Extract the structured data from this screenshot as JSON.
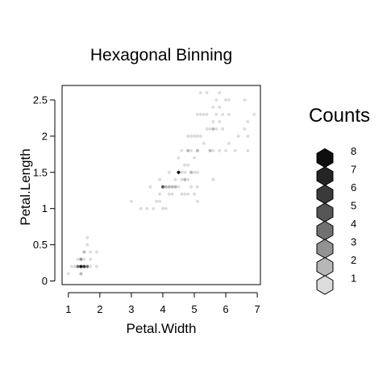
{
  "chart_data": {
    "type": "hexbin",
    "title": "Hexagonal Binning",
    "xlabel": "Petal.Width",
    "ylabel": "Petal.Length",
    "xlim": [
      0.8,
      7.1
    ],
    "ylim": [
      -0.05,
      2.7
    ],
    "x_ticks": [
      1,
      2,
      3,
      4,
      5,
      6,
      7
    ],
    "x_tick_labels": [
      "1",
      "2",
      "3",
      "4",
      "5",
      "6",
      "7"
    ],
    "y_ticks": [
      0,
      0.5,
      1,
      1.5,
      2,
      2.5
    ],
    "y_tick_labels": [
      "0",
      "0.5",
      "1",
      "1.5",
      "2",
      "2.5"
    ],
    "legend": {
      "title": "Counts",
      "position": "right",
      "levels": [
        {
          "label": "8",
          "color": "#0e0e0e"
        },
        {
          "label": "7",
          "color": "#242424"
        },
        {
          "label": "6",
          "color": "#3a3a3a"
        },
        {
          "label": "5",
          "color": "#555555"
        },
        {
          "label": "4",
          "color": "#717171"
        },
        {
          "label": "3",
          "color": "#929292"
        },
        {
          "label": "2",
          "color": "#b7b7b7"
        },
        {
          "label": "1",
          "color": "#dcdcdc"
        }
      ]
    },
    "cells": [
      {
        "x": 1.0,
        "y": 0.1,
        "count": 1
      },
      {
        "x": 1.4,
        "y": 0.1,
        "count": 2
      },
      {
        "x": 1.1,
        "y": 0.2,
        "count": 1
      },
      {
        "x": 1.3,
        "y": 0.2,
        "count": 4
      },
      {
        "x": 1.4,
        "y": 0.2,
        "count": 8
      },
      {
        "x": 1.5,
        "y": 0.2,
        "count": 6
      },
      {
        "x": 1.6,
        "y": 0.2,
        "count": 4
      },
      {
        "x": 1.2,
        "y": 0.2,
        "count": 1
      },
      {
        "x": 1.7,
        "y": 0.2,
        "count": 1
      },
      {
        "x": 1.9,
        "y": 0.2,
        "count": 1
      },
      {
        "x": 1.3,
        "y": 0.3,
        "count": 1
      },
      {
        "x": 1.4,
        "y": 0.3,
        "count": 3
      },
      {
        "x": 1.5,
        "y": 0.3,
        "count": 1
      },
      {
        "x": 1.7,
        "y": 0.3,
        "count": 1
      },
      {
        "x": 1.5,
        "y": 0.4,
        "count": 2
      },
      {
        "x": 1.7,
        "y": 0.4,
        "count": 1
      },
      {
        "x": 1.9,
        "y": 0.4,
        "count": 1
      },
      {
        "x": 1.6,
        "y": 0.6,
        "count": 1
      },
      {
        "x": 1.6,
        "y": 0.5,
        "count": 1
      },
      {
        "x": 3.0,
        "y": 1.1,
        "count": 1
      },
      {
        "x": 3.3,
        "y": 1.0,
        "count": 1
      },
      {
        "x": 3.5,
        "y": 1.0,
        "count": 1
      },
      {
        "x": 3.6,
        "y": 1.3,
        "count": 1
      },
      {
        "x": 3.7,
        "y": 1.0,
        "count": 1
      },
      {
        "x": 3.8,
        "y": 1.1,
        "count": 1
      },
      {
        "x": 3.9,
        "y": 1.1,
        "count": 1
      },
      {
        "x": 3.9,
        "y": 1.4,
        "count": 1
      },
      {
        "x": 3.9,
        "y": 1.2,
        "count": 1
      },
      {
        "x": 4.0,
        "y": 1.0,
        "count": 1
      },
      {
        "x": 4.0,
        "y": 1.3,
        "count": 5
      },
      {
        "x": 4.1,
        "y": 1.0,
        "count": 1
      },
      {
        "x": 4.1,
        "y": 1.3,
        "count": 2
      },
      {
        "x": 4.2,
        "y": 1.3,
        "count": 2
      },
      {
        "x": 4.3,
        "y": 1.3,
        "count": 2
      },
      {
        "x": 4.4,
        "y": 1.3,
        "count": 2
      },
      {
        "x": 4.4,
        "y": 1.4,
        "count": 1
      },
      {
        "x": 4.5,
        "y": 1.3,
        "count": 1
      },
      {
        "x": 4.5,
        "y": 1.5,
        "count": 8
      },
      {
        "x": 4.6,
        "y": 1.4,
        "count": 1
      },
      {
        "x": 4.6,
        "y": 1.5,
        "count": 1
      },
      {
        "x": 4.7,
        "y": 1.4,
        "count": 2
      },
      {
        "x": 4.7,
        "y": 1.5,
        "count": 1
      },
      {
        "x": 4.5,
        "y": 1.7,
        "count": 1
      },
      {
        "x": 4.8,
        "y": 1.8,
        "count": 2
      },
      {
        "x": 4.9,
        "y": 1.5,
        "count": 2
      },
      {
        "x": 4.8,
        "y": 1.4,
        "count": 1
      },
      {
        "x": 4.9,
        "y": 1.8,
        "count": 1
      },
      {
        "x": 5.0,
        "y": 1.7,
        "count": 1
      },
      {
        "x": 5.0,
        "y": 2.0,
        "count": 1
      },
      {
        "x": 4.9,
        "y": 2.0,
        "count": 1
      },
      {
        "x": 4.8,
        "y": 2.0,
        "count": 1
      },
      {
        "x": 4.6,
        "y": 1.8,
        "count": 1
      },
      {
        "x": 4.7,
        "y": 1.6,
        "count": 1
      },
      {
        "x": 5.1,
        "y": 1.8,
        "count": 2
      },
      {
        "x": 5.1,
        "y": 1.5,
        "count": 1
      },
      {
        "x": 5.1,
        "y": 2.0,
        "count": 1
      },
      {
        "x": 5.0,
        "y": 1.5,
        "count": 1
      },
      {
        "x": 4.8,
        "y": 1.6,
        "count": 1
      },
      {
        "x": 4.8,
        "y": 1.2,
        "count": 1
      },
      {
        "x": 4.9,
        "y": 1.3,
        "count": 1
      },
      {
        "x": 5.0,
        "y": 1.2,
        "count": 1
      },
      {
        "x": 5.1,
        "y": 1.1,
        "count": 1
      },
      {
        "x": 5.1,
        "y": 1.3,
        "count": 1
      },
      {
        "x": 4.2,
        "y": 1.5,
        "count": 1
      },
      {
        "x": 4.2,
        "y": 1.2,
        "count": 1
      },
      {
        "x": 4.3,
        "y": 1.2,
        "count": 1
      },
      {
        "x": 4.6,
        "y": 1.2,
        "count": 1
      },
      {
        "x": 4.7,
        "y": 1.2,
        "count": 1
      },
      {
        "x": 5.1,
        "y": 2.3,
        "count": 1
      },
      {
        "x": 5.2,
        "y": 2.3,
        "count": 1
      },
      {
        "x": 5.3,
        "y": 2.3,
        "count": 1
      },
      {
        "x": 5.2,
        "y": 2.0,
        "count": 1
      },
      {
        "x": 5.3,
        "y": 1.9,
        "count": 1
      },
      {
        "x": 5.4,
        "y": 2.1,
        "count": 1
      },
      {
        "x": 5.4,
        "y": 2.3,
        "count": 1
      },
      {
        "x": 5.5,
        "y": 1.8,
        "count": 2
      },
      {
        "x": 5.5,
        "y": 2.1,
        "count": 1
      },
      {
        "x": 5.6,
        "y": 1.8,
        "count": 1
      },
      {
        "x": 5.6,
        "y": 2.4,
        "count": 1
      },
      {
        "x": 5.6,
        "y": 2.2,
        "count": 1
      },
      {
        "x": 5.6,
        "y": 1.4,
        "count": 1
      },
      {
        "x": 5.6,
        "y": 2.1,
        "count": 2
      },
      {
        "x": 5.7,
        "y": 2.1,
        "count": 1
      },
      {
        "x": 5.7,
        "y": 2.5,
        "count": 1
      },
      {
        "x": 5.7,
        "y": 2.3,
        "count": 1
      },
      {
        "x": 5.8,
        "y": 1.8,
        "count": 1
      },
      {
        "x": 5.8,
        "y": 2.2,
        "count": 1
      },
      {
        "x": 5.8,
        "y": 2.4,
        "count": 1
      },
      {
        "x": 5.9,
        "y": 2.3,
        "count": 1
      },
      {
        "x": 5.9,
        "y": 2.1,
        "count": 1
      },
      {
        "x": 6.0,
        "y": 1.8,
        "count": 1
      },
      {
        "x": 6.0,
        "y": 2.5,
        "count": 1
      },
      {
        "x": 6.1,
        "y": 1.9,
        "count": 1
      },
      {
        "x": 6.1,
        "y": 2.3,
        "count": 1
      },
      {
        "x": 6.1,
        "y": 2.5,
        "count": 1
      },
      {
        "x": 6.3,
        "y": 1.8,
        "count": 1
      },
      {
        "x": 6.4,
        "y": 2.0,
        "count": 1
      },
      {
        "x": 6.6,
        "y": 2.1,
        "count": 1
      },
      {
        "x": 6.6,
        "y": 2.5,
        "count": 1
      },
      {
        "x": 6.7,
        "y": 2.0,
        "count": 1
      },
      {
        "x": 6.7,
        "y": 2.2,
        "count": 1
      },
      {
        "x": 6.7,
        "y": 1.8,
        "count": 1
      },
      {
        "x": 6.9,
        "y": 2.3,
        "count": 1
      },
      {
        "x": 5.2,
        "y": 2.6,
        "count": 1
      },
      {
        "x": 5.8,
        "y": 2.6,
        "count": 1
      },
      {
        "x": 5.4,
        "y": 2.6,
        "count": 1
      }
    ]
  }
}
